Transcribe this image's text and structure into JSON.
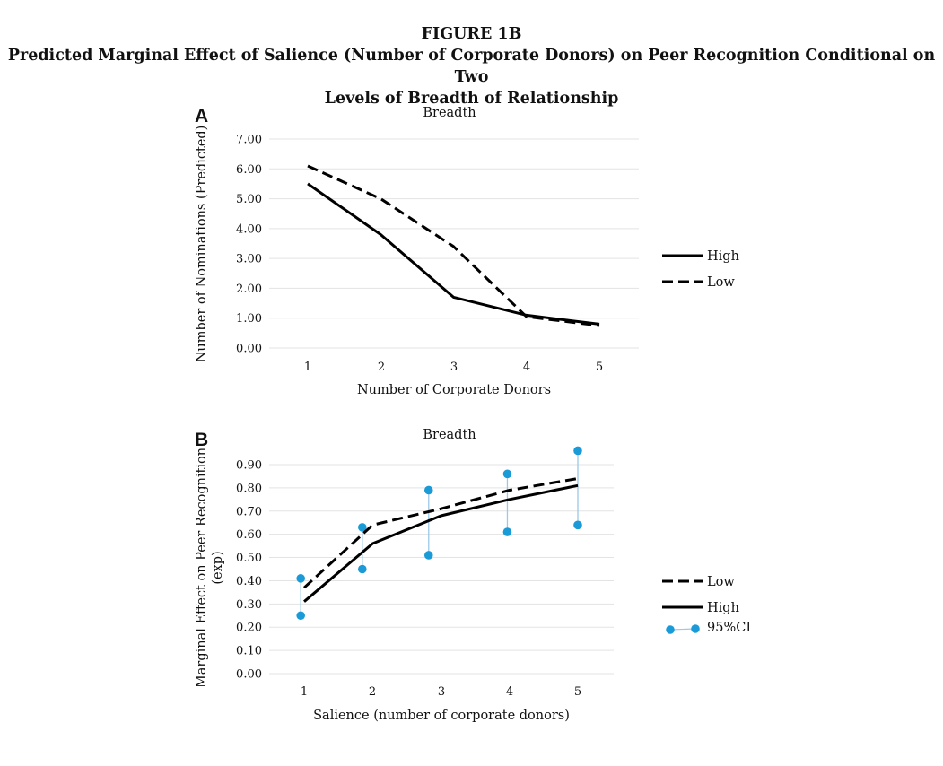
{
  "figure": {
    "label": "FIGURE 1B",
    "title_line1": "Predicted Marginal Effect of Salience (Number of Corporate Donors) on Peer Recognition Conditional on Two",
    "title_line2": "Levels of Breadth of Relationship"
  },
  "chart_data": [
    {
      "panel": "A",
      "type": "line",
      "title": "Breadth",
      "xlabel": "Number of Corporate Donors",
      "ylabel": "Number of Nominations (Predicted)",
      "categories": [
        "1",
        "2",
        "3",
        "4",
        "5"
      ],
      "x": [
        1,
        2,
        3,
        4,
        5
      ],
      "ylim": [
        0,
        7
      ],
      "yticks": [
        "0.00",
        "1.00",
        "2.00",
        "3.00",
        "4.00",
        "5.00",
        "6.00",
        "7.00"
      ],
      "grid": true,
      "legend_position": "right",
      "series": [
        {
          "name": "High",
          "style": "solid",
          "color": "#000000",
          "values": [
            5.5,
            3.8,
            1.7,
            1.1,
            0.8
          ]
        },
        {
          "name": "Low",
          "style": "dashed",
          "color": "#000000",
          "values": [
            6.1,
            5.0,
            3.4,
            1.05,
            0.75
          ]
        }
      ]
    },
    {
      "panel": "B",
      "type": "line",
      "title": "Breadth",
      "xlabel": "Salience (number of corporate donors)",
      "ylabel_line1": "Marginal Effect on Peer Recognition",
      "ylabel_line2": "(exp)",
      "categories": [
        "1",
        "2",
        "3",
        "4",
        "5"
      ],
      "x": [
        1,
        2,
        3,
        4,
        5
      ],
      "ylim": [
        0,
        0.9
      ],
      "yticks": [
        "0.00",
        "0.10",
        "0.20",
        "0.30",
        "0.40",
        "0.50",
        "0.60",
        "0.70",
        "0.80",
        "0.90"
      ],
      "grid": true,
      "legend_position": "right",
      "series": [
        {
          "name": "Low",
          "style": "dashed",
          "color": "#000000",
          "values": [
            0.37,
            0.64,
            0.71,
            0.79,
            0.84
          ]
        },
        {
          "name": "High",
          "style": "solid",
          "color": "#000000",
          "values": [
            0.31,
            0.56,
            0.68,
            0.75,
            0.81
          ]
        }
      ],
      "ci": {
        "name": "95%CI",
        "color": "#1a9ad6",
        "x": [
          0.95,
          1.85,
          2.82,
          3.97,
          5.0
        ],
        "lower": [
          0.25,
          0.45,
          0.51,
          0.61,
          0.64
        ],
        "upper": [
          0.41,
          0.63,
          0.79,
          0.86,
          0.96
        ]
      }
    }
  ]
}
